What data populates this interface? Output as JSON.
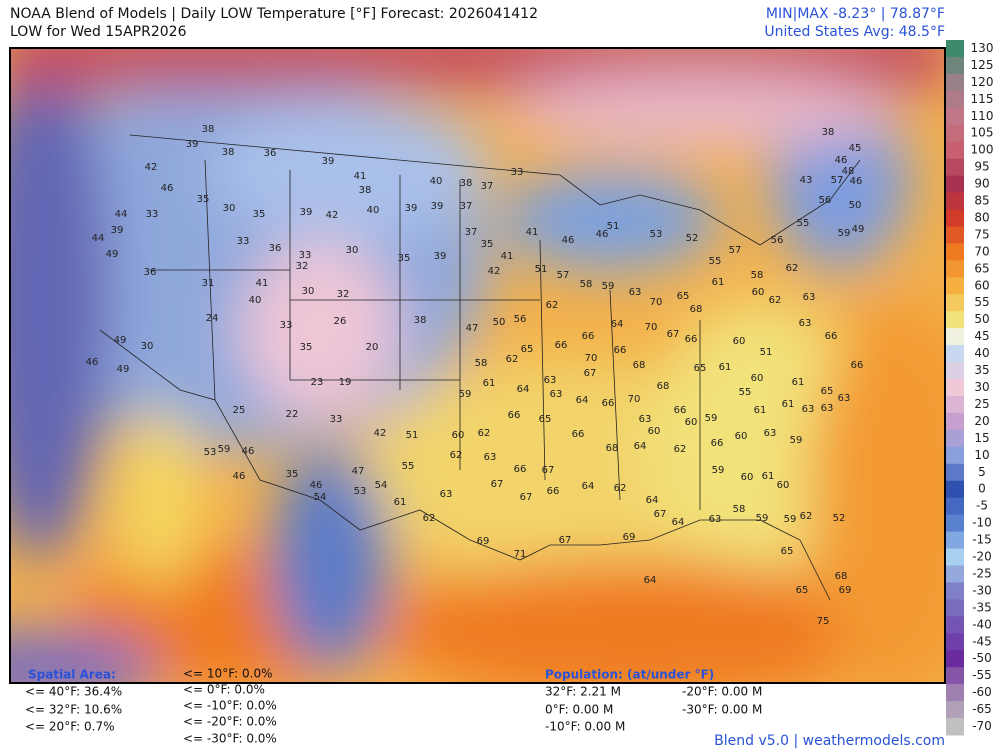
{
  "header": {
    "title": "NOAA Blend of Models | Daily LOW Temperature [°F] Forecast: 2026041412",
    "subtitle": "LOW for Wed 15APR2026",
    "minmax": "MIN|MAX -8.23°  |  78.87°F",
    "average": "United States Avg: 48.5°F"
  },
  "colorbar": {
    "ticks": [
      130,
      125,
      120,
      115,
      110,
      105,
      100,
      95,
      90,
      85,
      80,
      75,
      70,
      65,
      60,
      55,
      50,
      45,
      40,
      35,
      30,
      25,
      20,
      15,
      10,
      5,
      0,
      -5,
      -10,
      -15,
      -20,
      -25,
      -30,
      -35,
      -40,
      -45,
      -50,
      -55,
      -60,
      -65,
      -70
    ]
  },
  "spatial": {
    "title": "Spatial Area:",
    "items": [
      "<= 40°F: 36.4%",
      "<= 32°F: 10.6%",
      "<= 20°F: 0.7%",
      "<= 10°F: 0.0%",
      "<= 0°F: 0.0%",
      "<= -10°F: 0.0%",
      "<= -20°F: 0.0%",
      "<= -30°F: 0.0%"
    ]
  },
  "population": {
    "title": "Population: (at/under °F)",
    "items": [
      "32°F: 2.21 M",
      "0°F: 0.00 M",
      "-10°F: 0.00 M",
      "-20°F: 0.00 M",
      "-30°F: 0.00 M"
    ]
  },
  "stations": [
    38,
    39,
    38,
    36,
    39,
    41,
    38,
    40,
    38,
    37,
    33,
    42,
    46,
    44,
    44,
    39,
    49,
    33,
    35,
    30,
    35,
    39,
    42,
    40,
    39,
    39,
    37,
    37,
    35,
    41,
    41,
    46,
    46,
    51,
    53,
    52,
    33,
    36,
    32,
    33,
    30,
    35,
    39,
    42,
    36,
    31,
    41,
    40,
    30,
    32,
    24,
    30,
    49,
    46,
    49,
    33,
    35,
    26,
    20,
    19,
    23,
    38,
    47,
    50,
    25,
    22,
    33,
    42,
    51,
    59,
    46,
    53,
    46,
    35,
    47,
    54,
    55,
    46,
    54,
    53,
    61,
    63,
    67,
    67,
    66,
    64,
    62,
    69,
    71,
    67,
    62,
    63,
    66,
    67,
    60,
    62,
    66,
    65,
    66,
    68,
    64,
    62,
    64,
    67,
    64,
    69,
    63,
    58,
    59,
    59,
    62,
    60,
    61,
    60,
    63,
    59,
    63,
    55,
    60,
    61,
    65,
    63,
    66,
    66,
    63,
    62,
    58,
    62,
    63,
    60,
    57,
    55,
    65,
    68,
    61,
    70,
    63,
    59,
    58,
    57,
    51,
    62,
    56,
    64,
    70,
    67,
    66,
    65,
    68,
    70,
    66,
    64,
    63,
    64,
    61,
    59,
    58,
    62,
    63,
    67,
    66,
    66,
    66,
    65,
    70,
    68,
    61,
    60,
    51,
    66,
    60,
    59,
    63,
    60,
    62,
    59,
    66,
    60,
    61,
    61,
    63,
    64,
    65,
    68,
    69,
    75,
    65,
    52,
    49,
    50,
    56,
    55,
    56,
    59,
    57,
    48,
    46,
    45,
    46,
    38,
    43
  ],
  "footer": "Blend v5.0 | weathermodels.com"
}
